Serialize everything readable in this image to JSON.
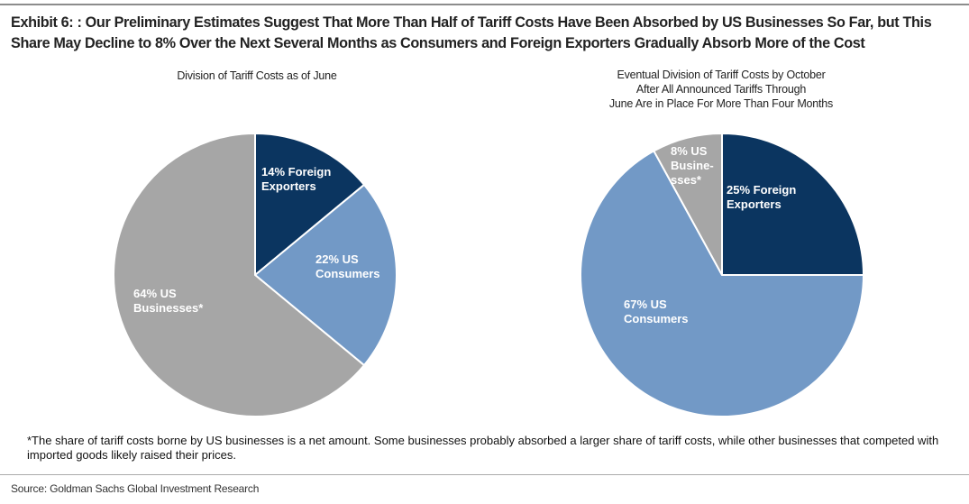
{
  "title": "Exhibit 6: : Our Preliminary Estimates Suggest That More Than Half of Tariff Costs Have Been Absorbed by US Businesses So Far, but This Share May Decline to 8% Over the Next Several Months as Consumers and Foreign Exporters Gradually Absorb More of the Cost",
  "footnote": "*The share of tariff costs borne by US businesses is a net amount. Some businesses probably absorbed a larger share of tariff costs, while other businesses that competed with imported goods likely raised their prices.",
  "source": "Source: Goldman Sachs Global Investment Research",
  "colors": {
    "foreign": "#0b3560",
    "consumers": "#7299c6",
    "businesses": "#a6a6a6"
  },
  "chart_data": [
    {
      "type": "pie",
      "title": "Division of Tariff Costs as of June",
      "slices": [
        {
          "name": "Foreign Exporters",
          "value": 14,
          "label_lines": [
            "14% Foreign",
            "Exporters"
          ],
          "color": "#0b3560"
        },
        {
          "name": "US Consumers",
          "value": 22,
          "label_lines": [
            "22% US",
            "Consumers"
          ],
          "color": "#7299c6"
        },
        {
          "name": "US Businesses*",
          "value": 64,
          "label_lines": [
            "64% US",
            "Businesses*"
          ],
          "color": "#a6a6a6"
        }
      ]
    },
    {
      "type": "pie",
      "title_lines": [
        "Eventual Division of Tariff Costs by October",
        "After All Announced Tariffs Through",
        "June Are in Place For More Than Four Months"
      ],
      "slices": [
        {
          "name": "Foreign Exporters",
          "value": 25,
          "label_lines": [
            "25% Foreign",
            "Exporters"
          ],
          "color": "#0b3560"
        },
        {
          "name": "US Consumers",
          "value": 67,
          "label_lines": [
            "67% US",
            "Consumers"
          ],
          "color": "#7299c6"
        },
        {
          "name": "US Businesses*",
          "value": 8,
          "label_lines": [
            "8% US",
            "Busine-",
            "sses*"
          ],
          "color": "#a6a6a6"
        }
      ]
    }
  ]
}
